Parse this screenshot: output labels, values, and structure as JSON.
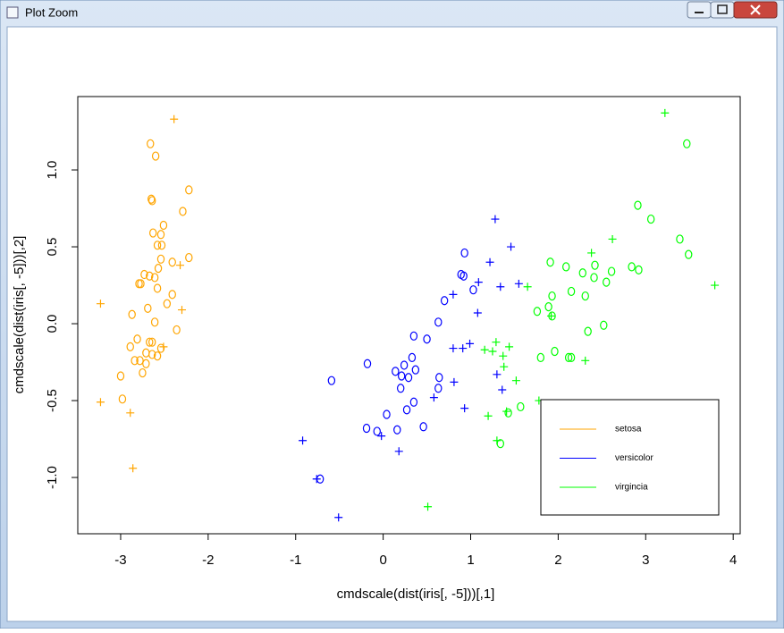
{
  "window": {
    "title": "Plot Zoom"
  },
  "chart_data": {
    "type": "scatter",
    "xlabel": "cmdscale(dist(iris[, -5]))[,1]",
    "ylabel": "cmdscale(dist(iris[, -5]))[,2]",
    "xlim": [
      -3.49,
      4.08
    ],
    "ylim": [
      -1.366,
      1.477
    ],
    "xticks": [
      -3,
      -2,
      -1,
      0,
      1,
      2,
      3,
      4
    ],
    "yticks": [
      {
        "value": -1,
        "label": "-1.0"
      },
      -0.5,
      {
        "value": 0,
        "label": "0.0"
      },
      0.5,
      {
        "value": 1,
        "label": "1.0"
      }
    ],
    "legend": "bottomright",
    "series": [
      {
        "name": "setosa",
        "color": "#ffa500",
        "x": [
          -2.66,
          -2.6,
          -2.22,
          -2.65,
          -2.64,
          -2.29,
          -2.51,
          -2.63,
          -2.54,
          -2.58,
          -2.53,
          -2.22,
          -2.54,
          -2.41,
          -2.57,
          -2.73,
          -2.67,
          -2.61,
          -2.79,
          -2.77,
          -2.58,
          -2.41,
          -2.47,
          -2.69,
          -2.87,
          -2.61,
          -2.36,
          -2.81,
          -2.67,
          -2.64,
          -2.89,
          -2.54,
          -2.71,
          -2.64,
          -2.58,
          -2.84,
          -2.78,
          -2.71,
          -2.75,
          -3.0,
          -2.98,
          -2.39,
          -2.32,
          -3.23,
          -2.3,
          -2.51,
          -3.23,
          -2.89,
          -2.86
        ],
        "y": [
          1.17,
          1.09,
          0.87,
          0.81,
          0.8,
          0.73,
          0.64,
          0.59,
          0.58,
          0.51,
          0.51,
          0.43,
          0.42,
          0.4,
          0.36,
          0.32,
          0.31,
          0.3,
          0.26,
          0.26,
          0.23,
          0.19,
          0.13,
          0.1,
          0.06,
          0.01,
          -0.04,
          -0.1,
          -0.12,
          -0.12,
          -0.15,
          -0.16,
          -0.19,
          -0.2,
          -0.21,
          -0.24,
          -0.24,
          -0.26,
          -0.32,
          -0.34,
          -0.49,
          1.33,
          0.38,
          0.13,
          0.09,
          -0.15,
          -0.51,
          -0.58,
          -0.94
        ],
        "markers": [
          "o",
          "o",
          "o",
          "o",
          "o",
          "o",
          "o",
          "o",
          "o",
          "o",
          "o",
          "o",
          "o",
          "o",
          "o",
          "o",
          "o",
          "o",
          "o",
          "o",
          "o",
          "o",
          "o",
          "o",
          "o",
          "o",
          "o",
          "o",
          "o",
          "o",
          "o",
          "o",
          "o",
          "o",
          "o",
          "o",
          "o",
          "o",
          "o",
          "o",
          "o",
          "+",
          "+",
          "+",
          "+",
          "+",
          "+",
          "+",
          "+"
        ]
      },
      {
        "name": "versicolor",
        "color": "#0000ff",
        "x": [
          0.93,
          0.89,
          0.92,
          1.03,
          0.7,
          0.63,
          0.35,
          0.5,
          0.33,
          -0.18,
          0.24,
          0.37,
          0.14,
          0.29,
          0.21,
          -0.59,
          0.64,
          0.63,
          0.2,
          0.35,
          0.27,
          0.04,
          0.16,
          0.46,
          -0.19,
          -0.07,
          -0.72,
          1.28,
          1.46,
          1.22,
          1.09,
          1.55,
          1.34,
          0.8,
          1.08,
          0.99,
          0.91,
          0.8,
          1.3,
          0.81,
          1.36,
          0.58,
          0.93,
          -0.02,
          0.18,
          -0.92,
          -0.76,
          -0.51
        ],
        "y": [
          0.46,
          0.32,
          0.31,
          0.22,
          0.15,
          0.01,
          -0.08,
          -0.1,
          -0.22,
          -0.26,
          -0.27,
          -0.3,
          -0.31,
          -0.35,
          -0.34,
          -0.37,
          -0.35,
          -0.42,
          -0.42,
          -0.51,
          -0.56,
          -0.59,
          -0.69,
          -0.67,
          -0.68,
          -0.7,
          -1.01,
          0.68,
          0.5,
          0.4,
          0.27,
          0.26,
          0.24,
          0.19,
          0.07,
          -0.13,
          -0.16,
          -0.16,
          -0.33,
          -0.38,
          -0.43,
          -0.48,
          -0.55,
          -0.73,
          -0.83,
          -0.76,
          -1.01,
          -1.26
        ],
        "markers": [
          "o",
          "o",
          "o",
          "o",
          "o",
          "o",
          "o",
          "o",
          "o",
          "o",
          "o",
          "o",
          "o",
          "o",
          "o",
          "o",
          "o",
          "o",
          "o",
          "o",
          "o",
          "o",
          "o",
          "o",
          "o",
          "o",
          "o",
          "+",
          "+",
          "+",
          "+",
          "+",
          "+",
          "+",
          "+",
          "+",
          "+",
          "+",
          "+",
          "+",
          "+",
          "+",
          "+",
          "+",
          "+",
          "+",
          "+",
          "+"
        ]
      },
      {
        "name": "virgincia",
        "color": "#00ff00",
        "x": [
          3.47,
          2.91,
          3.06,
          3.39,
          3.49,
          1.91,
          2.09,
          2.42,
          2.84,
          2.92,
          2.61,
          2.28,
          2.41,
          2.55,
          2.15,
          1.93,
          2.31,
          1.89,
          1.76,
          1.93,
          2.52,
          2.34,
          1.96,
          1.8,
          2.12,
          2.15,
          1.57,
          1.43,
          1.34,
          3.22,
          2.62,
          2.38,
          3.79,
          1.65,
          1.92,
          1.29,
          1.16,
          1.25,
          1.44,
          1.37,
          1.38,
          2.31,
          1.52,
          1.78,
          1.2,
          1.41,
          1.3,
          0.51
        ],
        "y": [
          1.17,
          0.77,
          0.68,
          0.55,
          0.45,
          0.4,
          0.37,
          0.38,
          0.37,
          0.35,
          0.34,
          0.33,
          0.3,
          0.27,
          0.21,
          0.18,
          0.18,
          0.11,
          0.08,
          0.05,
          -0.01,
          -0.05,
          -0.18,
          -0.22,
          -0.22,
          -0.22,
          -0.54,
          -0.58,
          -0.78,
          1.37,
          0.55,
          0.46,
          0.25,
          0.24,
          0.05,
          -0.12,
          -0.17,
          -0.18,
          -0.15,
          -0.21,
          -0.28,
          -0.24,
          -0.37,
          -0.5,
          -0.6,
          -0.57,
          -0.76,
          -1.19
        ],
        "markers": [
          "o",
          "o",
          "o",
          "o",
          "o",
          "o",
          "o",
          "o",
          "o",
          "o",
          "o",
          "o",
          "o",
          "o",
          "o",
          "o",
          "o",
          "o",
          "o",
          "o",
          "o",
          "o",
          "o",
          "o",
          "o",
          "o",
          "o",
          "o",
          "o",
          "+",
          "+",
          "+",
          "+",
          "+",
          "+",
          "+",
          "+",
          "+",
          "+",
          "+",
          "+",
          "+",
          "+",
          "+",
          "+",
          "+",
          "+",
          "+"
        ]
      }
    ]
  }
}
